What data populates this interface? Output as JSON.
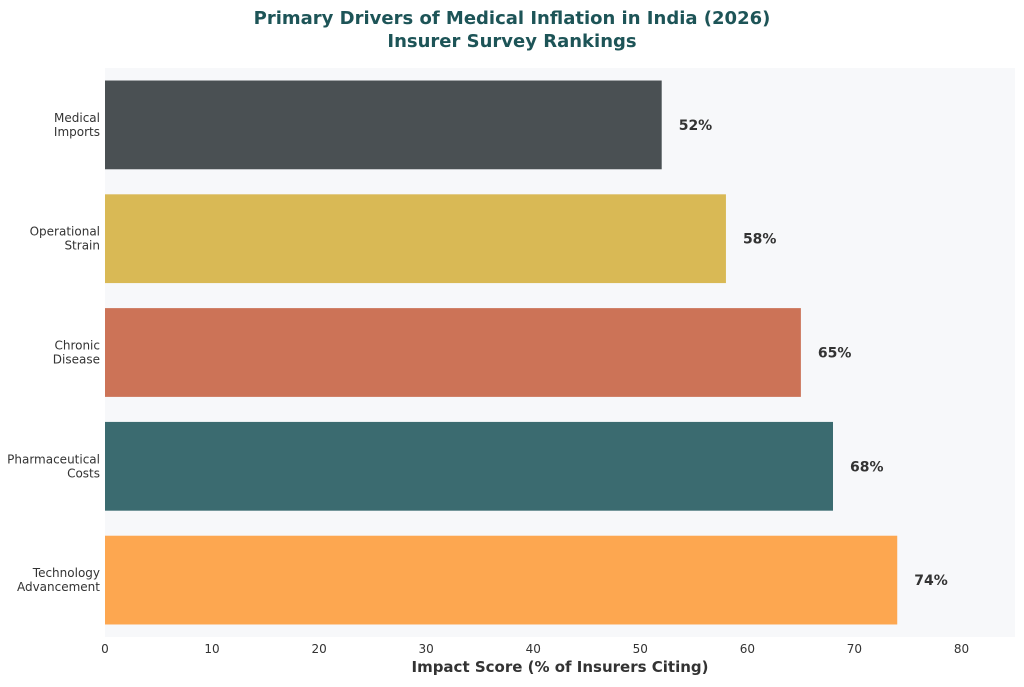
{
  "chart_data": {
    "type": "bar",
    "orientation": "horizontal",
    "title": "Primary Drivers of Medical Inflation in India (2026)",
    "subtitle": "Insurer Survey Rankings",
    "xlabel": "Impact Score (% of Insurers Citing)",
    "ylabel": "",
    "xlim": [
      0,
      85
    ],
    "xticks": [
      0,
      10,
      20,
      30,
      40,
      50,
      60,
      70,
      80
    ],
    "grid": false,
    "categories": [
      [
        "Medical",
        "Imports"
      ],
      [
        "Operational",
        "Strain"
      ],
      [
        "Chronic",
        "Disease"
      ],
      [
        "Pharmaceutical",
        "Costs"
      ],
      [
        "Technology",
        "Advancement"
      ]
    ],
    "values": [
      52,
      58,
      65,
      68,
      74
    ],
    "data_labels": [
      "52%",
      "58%",
      "65%",
      "68%",
      "74%"
    ],
    "colors": [
      "#4a5053",
      "#d9b955",
      "#cc7357",
      "#3b6b70",
      "#fda750"
    ],
    "title_color": "#1d5457",
    "plot_background": "#f7f8fa"
  }
}
